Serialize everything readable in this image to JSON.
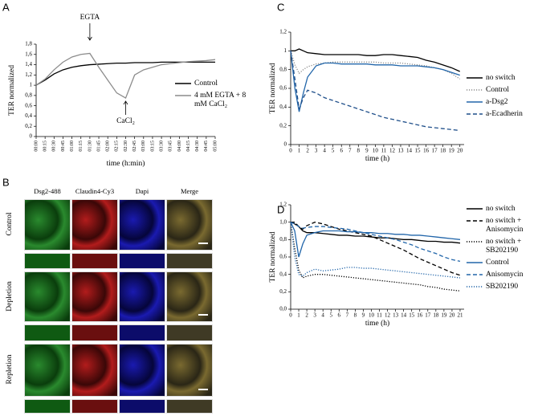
{
  "panel_labels": [
    "A",
    "B",
    "C",
    "D"
  ],
  "micrograph": {
    "columns": [
      "Dsg2-488",
      "Claudin4-Cy3",
      "Dapi",
      "Merge"
    ],
    "rows": [
      "Control",
      "Depletion",
      "Repletion"
    ]
  },
  "chart_data": [
    {
      "type": "line",
      "xlabel": "time (h:min)",
      "ylabel": "TER normalized",
      "legend": "lower right",
      "categories": [
        "00:00",
        "00:15",
        "00:30",
        "00:45",
        "01:00",
        "01:15",
        "01:30",
        "01:45",
        "02:00",
        "02:15",
        "02:30",
        "02:45",
        "03:00",
        "03:15",
        "03:30",
        "03:45",
        "04:00",
        "04:15",
        "04:30",
        "04:45",
        "05:00"
      ],
      "ylim": [
        0,
        1.8
      ],
      "yticks": [
        0,
        {
          "value": 0.2,
          "label": "0,2"
        },
        {
          "value": 0.4,
          "label": "0,4"
        },
        {
          "value": 0.6,
          "label": "0,6"
        },
        {
          "value": 0.8,
          "label": "0,8"
        },
        1,
        {
          "value": 1.2,
          "label": "1,2"
        },
        {
          "value": 1.4,
          "label": "1,4"
        },
        {
          "value": 1.6,
          "label": "1,6"
        },
        {
          "value": 1.8,
          "label": "1,8"
        }
      ],
      "series": [
        {
          "name": "Control",
          "color": "#000000",
          "dash": "solid",
          "values": [
            1.0,
            1.1,
            1.22,
            1.3,
            1.35,
            1.38,
            1.4,
            1.41,
            1.42,
            1.43,
            1.43,
            1.44,
            1.44,
            1.44,
            1.45,
            1.45,
            1.45,
            1.45,
            1.45,
            1.45,
            1.45
          ]
        },
        {
          "name": "4 mM EGTA + 8 mM CaCl₂",
          "color": "#8c8c8c",
          "dash": "solid",
          "values": [
            1.0,
            1.12,
            1.3,
            1.45,
            1.55,
            1.6,
            1.62,
            1.35,
            1.1,
            0.85,
            0.75,
            1.2,
            1.3,
            1.35,
            1.4,
            1.42,
            1.44,
            1.46,
            1.47,
            1.48,
            1.5
          ]
        }
      ],
      "annotations": [
        {
          "text": "EGTA",
          "at": "01:30"
        },
        {
          "text": "CaCl₂",
          "at": "02:30"
        }
      ]
    },
    {
      "type": "line",
      "xlabel": "time (h)",
      "ylabel": "TER normalized",
      "legend": "center right",
      "x": [
        0,
        0.5,
        1,
        1.5,
        2,
        3,
        4,
        5,
        6,
        7,
        8,
        9,
        10,
        11,
        12,
        13,
        14,
        15,
        16,
        17,
        18,
        19,
        20
      ],
      "xlim": [
        0,
        20.5
      ],
      "xticks": [
        0,
        1,
        2,
        3,
        4,
        5,
        6,
        7,
        8,
        9,
        10,
        11,
        12,
        13,
        14,
        15,
        16,
        17,
        18,
        19,
        20
      ],
      "ylim": [
        0,
        1.2
      ],
      "yticks": [
        0,
        {
          "value": 0.2,
          "label": "0,2"
        },
        {
          "value": 0.4,
          "label": "0,4"
        },
        {
          "value": 0.6,
          "label": "0,6"
        },
        {
          "value": 0.8,
          "label": "0,8"
        },
        1,
        {
          "value": 1.2,
          "label": "1,2"
        }
      ],
      "series": [
        {
          "name": "no switch",
          "color": "#000000",
          "dash": "solid",
          "values": [
            1,
            1,
            1.02,
            1,
            0.98,
            0.97,
            0.96,
            0.96,
            0.96,
            0.96,
            0.96,
            0.95,
            0.95,
            0.96,
            0.96,
            0.95,
            0.94,
            0.93,
            0.9,
            0.88,
            0.85,
            0.82,
            0.78
          ]
        },
        {
          "name": "Control",
          "color": "#8c8c8c",
          "dash": "dotted",
          "values": [
            1,
            0.85,
            0.76,
            0.8,
            0.83,
            0.86,
            0.87,
            0.88,
            0.88,
            0.88,
            0.88,
            0.88,
            0.88,
            0.87,
            0.87,
            0.87,
            0.86,
            0.85,
            0.84,
            0.82,
            0.8,
            0.76,
            0.7
          ]
        },
        {
          "name": "a-Dsg2",
          "color": "#2266aa",
          "dash": "solid",
          "values": [
            1,
            0.6,
            0.35,
            0.55,
            0.72,
            0.84,
            0.87,
            0.87,
            0.86,
            0.86,
            0.86,
            0.86,
            0.85,
            0.85,
            0.85,
            0.84,
            0.84,
            0.84,
            0.83,
            0.82,
            0.8,
            0.77,
            0.74
          ]
        },
        {
          "name": "a-Ecadherin",
          "color": "#1f4f8a",
          "dash": "dashed",
          "values": [
            1,
            0.7,
            0.38,
            0.5,
            0.58,
            0.55,
            0.5,
            0.47,
            0.44,
            0.41,
            0.38,
            0.35,
            0.32,
            0.29,
            0.27,
            0.25,
            0.23,
            0.21,
            0.19,
            0.18,
            0.17,
            0.16,
            0.15
          ]
        }
      ]
    },
    {
      "type": "line",
      "xlabel": "time (h)",
      "ylabel": "TER normalized",
      "legend": "upper right",
      "x": [
        0,
        0.5,
        1,
        1.5,
        2,
        3,
        4,
        5,
        6,
        7,
        8,
        9,
        10,
        11,
        12,
        13,
        14,
        15,
        16,
        17,
        18,
        19,
        20,
        21
      ],
      "xlim": [
        0,
        21.5
      ],
      "xticks": [
        0,
        1,
        2,
        3,
        4,
        5,
        6,
        7,
        8,
        9,
        10,
        11,
        12,
        13,
        14,
        15,
        16,
        17,
        18,
        19,
        20,
        21
      ],
      "ylim": [
        0,
        1.2
      ],
      "yticks": [
        {
          "value": 0,
          "label": "0,0"
        },
        {
          "value": 0.2,
          "label": "0,2"
        },
        {
          "value": 0.4,
          "label": "0,4"
        },
        {
          "value": 0.6,
          "label": "0,6"
        },
        {
          "value": 0.8,
          "label": "0,8"
        },
        {
          "value": 1,
          "label": "1,0"
        },
        {
          "value": 1.2,
          "label": "1,2"
        }
      ],
      "series": [
        {
          "name": "no switch",
          "color": "#000000",
          "dash": "solid",
          "values": [
            1,
            0.98,
            0.95,
            0.9,
            0.88,
            0.88,
            0.87,
            0.86,
            0.85,
            0.85,
            0.84,
            0.84,
            0.83,
            0.82,
            0.82,
            0.81,
            0.8,
            0.8,
            0.79,
            0.78,
            0.78,
            0.77,
            0.77,
            0.76
          ]
        },
        {
          "name": "no switch + Anisomycin",
          "color": "#000000",
          "dash": "dashed",
          "values": [
            1,
            1,
            0.95,
            0.92,
            0.96,
            1.0,
            0.98,
            0.95,
            0.92,
            0.9,
            0.88,
            0.86,
            0.84,
            0.8,
            0.76,
            0.72,
            0.68,
            0.63,
            0.58,
            0.54,
            0.5,
            0.46,
            0.42,
            0.39
          ]
        },
        {
          "name": "no switch + SB202190",
          "color": "#000000",
          "dash": "dotted",
          "values": [
            1,
            0.7,
            0.45,
            0.36,
            0.38,
            0.4,
            0.4,
            0.39,
            0.38,
            0.37,
            0.36,
            0.35,
            0.34,
            0.33,
            0.32,
            0.31,
            0.3,
            0.29,
            0.28,
            0.26,
            0.25,
            0.23,
            0.22,
            0.21
          ]
        },
        {
          "name": "Control",
          "color": "#2266aa",
          "dash": "solid",
          "values": [
            1,
            0.9,
            0.6,
            0.75,
            0.85,
            0.88,
            0.9,
            0.9,
            0.9,
            0.89,
            0.89,
            0.88,
            0.88,
            0.87,
            0.87,
            0.86,
            0.86,
            0.85,
            0.85,
            0.84,
            0.83,
            0.82,
            0.81,
            0.8
          ]
        },
        {
          "name": "Anisomycin",
          "color": "#2266aa",
          "dash": "dashed",
          "values": [
            1,
            0.98,
            0.95,
            0.93,
            0.94,
            0.95,
            0.95,
            0.94,
            0.93,
            0.92,
            0.9,
            0.88,
            0.86,
            0.84,
            0.82,
            0.8,
            0.77,
            0.74,
            0.7,
            0.67,
            0.64,
            0.6,
            0.57,
            0.55
          ]
        },
        {
          "name": "SB202190",
          "color": "#2266aa",
          "dash": "dotted",
          "values": [
            1,
            0.6,
            0.4,
            0.38,
            0.42,
            0.46,
            0.44,
            0.45,
            0.46,
            0.48,
            0.48,
            0.47,
            0.47,
            0.46,
            0.45,
            0.44,
            0.43,
            0.42,
            0.41,
            0.4,
            0.39,
            0.38,
            0.37,
            0.36
          ]
        }
      ]
    }
  ]
}
